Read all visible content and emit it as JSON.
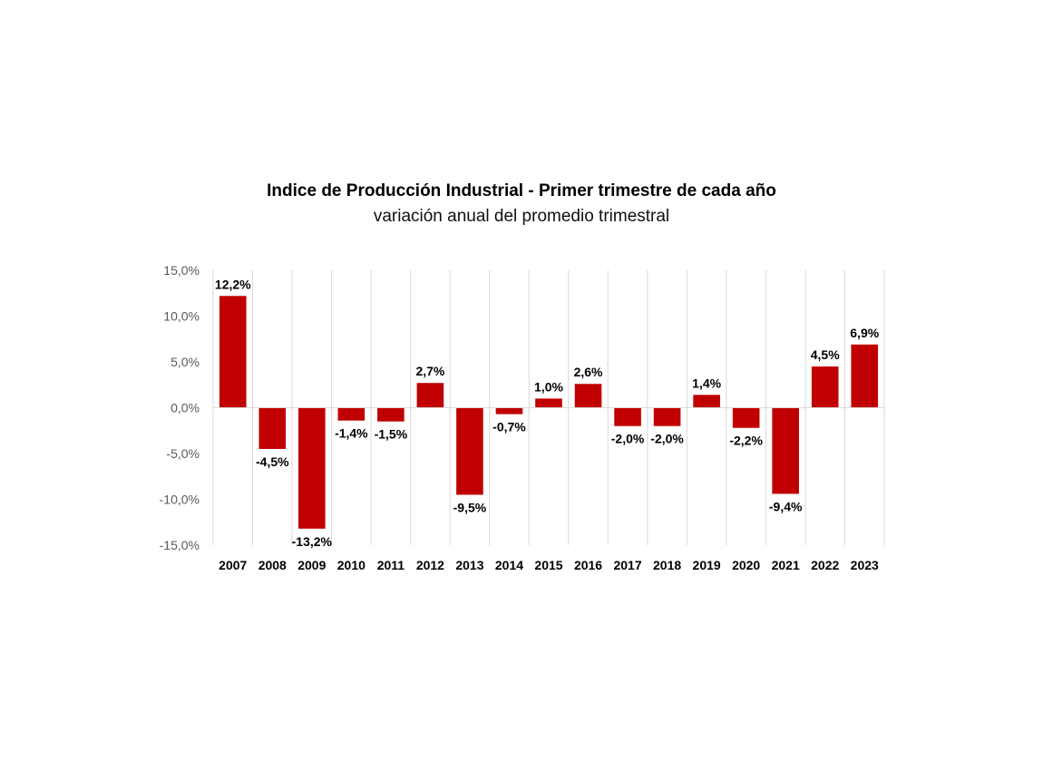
{
  "chart_data": {
    "type": "bar",
    "title": "Indice de Producción Industrial - Primer trimestre de cada año",
    "subtitle": "variación anual del promedio trimestral",
    "xlabel": "",
    "ylabel": "",
    "ylim": [
      -15,
      15
    ],
    "yticks": [
      15,
      10,
      5,
      0,
      -5,
      -10,
      -15
    ],
    "ytick_labels": [
      "15,0%",
      "10,0%",
      "5,0%",
      "0,0%",
      "-5,0%",
      "-10,0%",
      "-15,0%"
    ],
    "grid": "vertical",
    "categories": [
      "2007",
      "2008",
      "2009",
      "2010",
      "2011",
      "2012",
      "2013",
      "2014",
      "2015",
      "2016",
      "2017",
      "2018",
      "2019",
      "2020",
      "2021",
      "2022",
      "2023"
    ],
    "values": [
      12.2,
      -4.5,
      -13.2,
      -1.4,
      -1.5,
      2.7,
      -9.5,
      -0.7,
      1.0,
      2.6,
      -2.0,
      -2.0,
      1.4,
      -2.2,
      -9.4,
      4.5,
      6.9
    ],
    "data_labels": [
      "12,2%",
      "-4,5%",
      "-13,2%",
      "-1,4%",
      "-1,5%",
      "2,7%",
      "-9,5%",
      "-0,7%",
      "1,0%",
      "2,6%",
      "-2,0%",
      "-2,0%",
      "1,4%",
      "-2,2%",
      "-9,4%",
      "4,5%",
      "6,9%"
    ],
    "bar_color": "#c00000",
    "grid_color": "#d9d9d9",
    "axis_color": "#d9d9d9"
  }
}
